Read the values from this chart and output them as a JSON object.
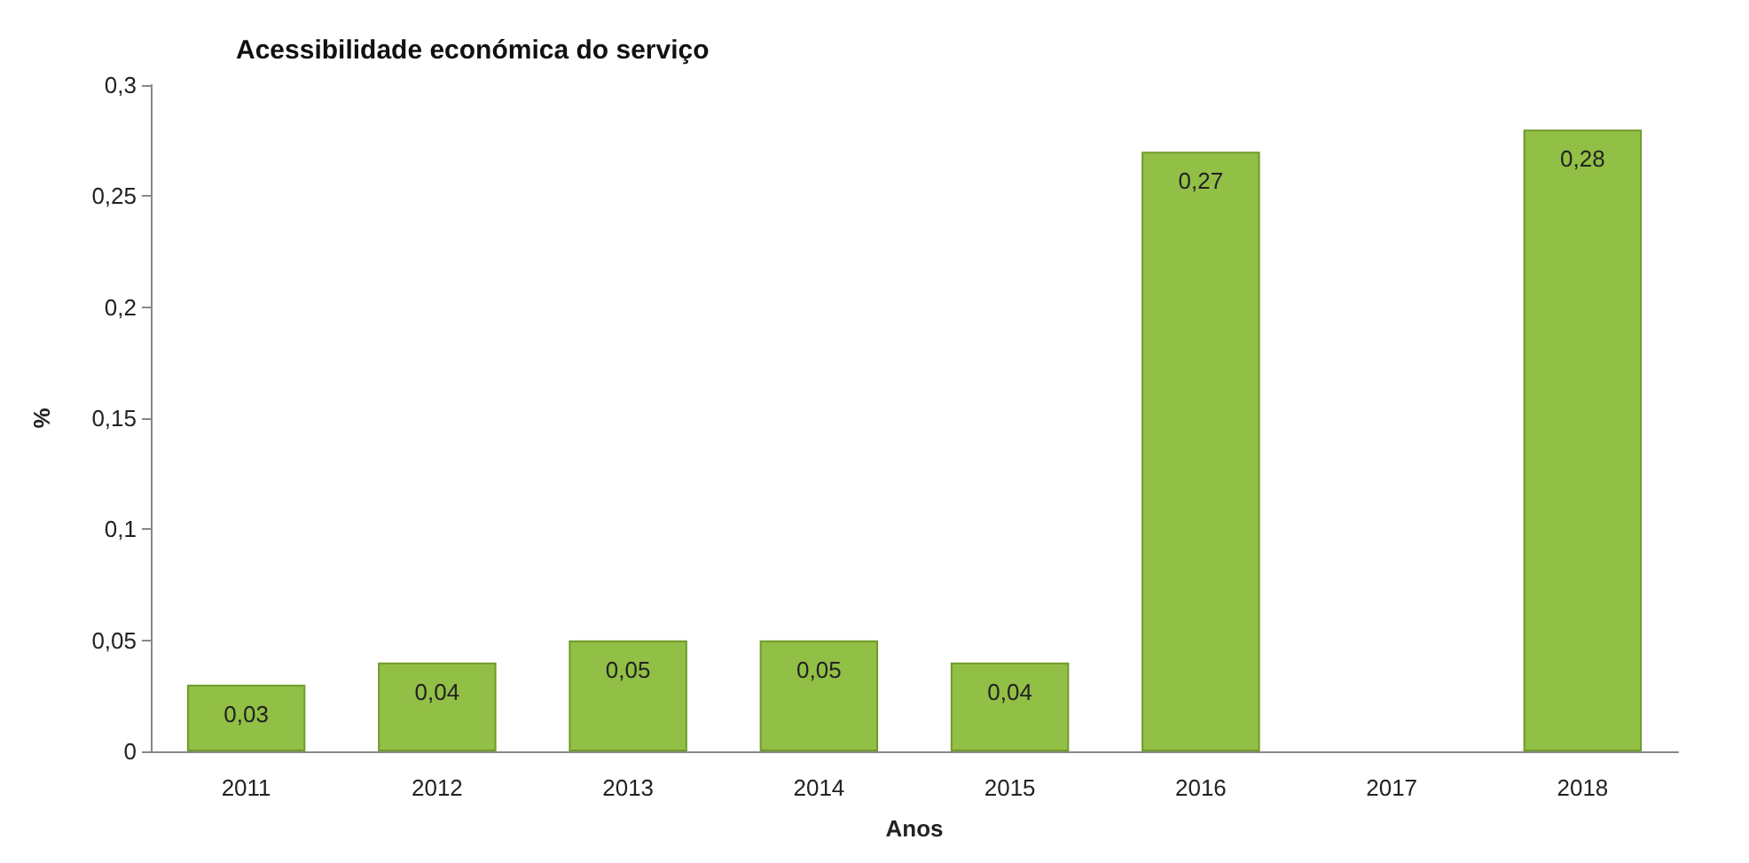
{
  "chart_data": {
    "type": "bar",
    "title": "Acessibilidade económica do serviço",
    "xlabel": "Anos",
    "ylabel": "%",
    "categories": [
      "2011",
      "2012",
      "2013",
      "2014",
      "2015",
      "2016",
      "2017",
      "2018"
    ],
    "values": [
      0.03,
      0.04,
      0.05,
      0.05,
      0.04,
      0.27,
      null,
      0.28
    ],
    "value_labels": [
      "0,03",
      "0,04",
      "0,05",
      "0,05",
      "0,04",
      "0,27",
      null,
      "0,28"
    ],
    "color": "#92bf45",
    "ylim": [
      0,
      0.3
    ],
    "yticks": [
      {
        "value": 0,
        "label": "0"
      },
      {
        "value": 0.05,
        "label": "0,05"
      },
      {
        "value": 0.1,
        "label": "0,1"
      },
      {
        "value": 0.15,
        "label": "0,15"
      },
      {
        "value": 0.2,
        "label": "0,2"
      },
      {
        "value": 0.25,
        "label": "0,25"
      },
      {
        "value": 0.3,
        "label": "0,3"
      }
    ],
    "grid": false
  }
}
